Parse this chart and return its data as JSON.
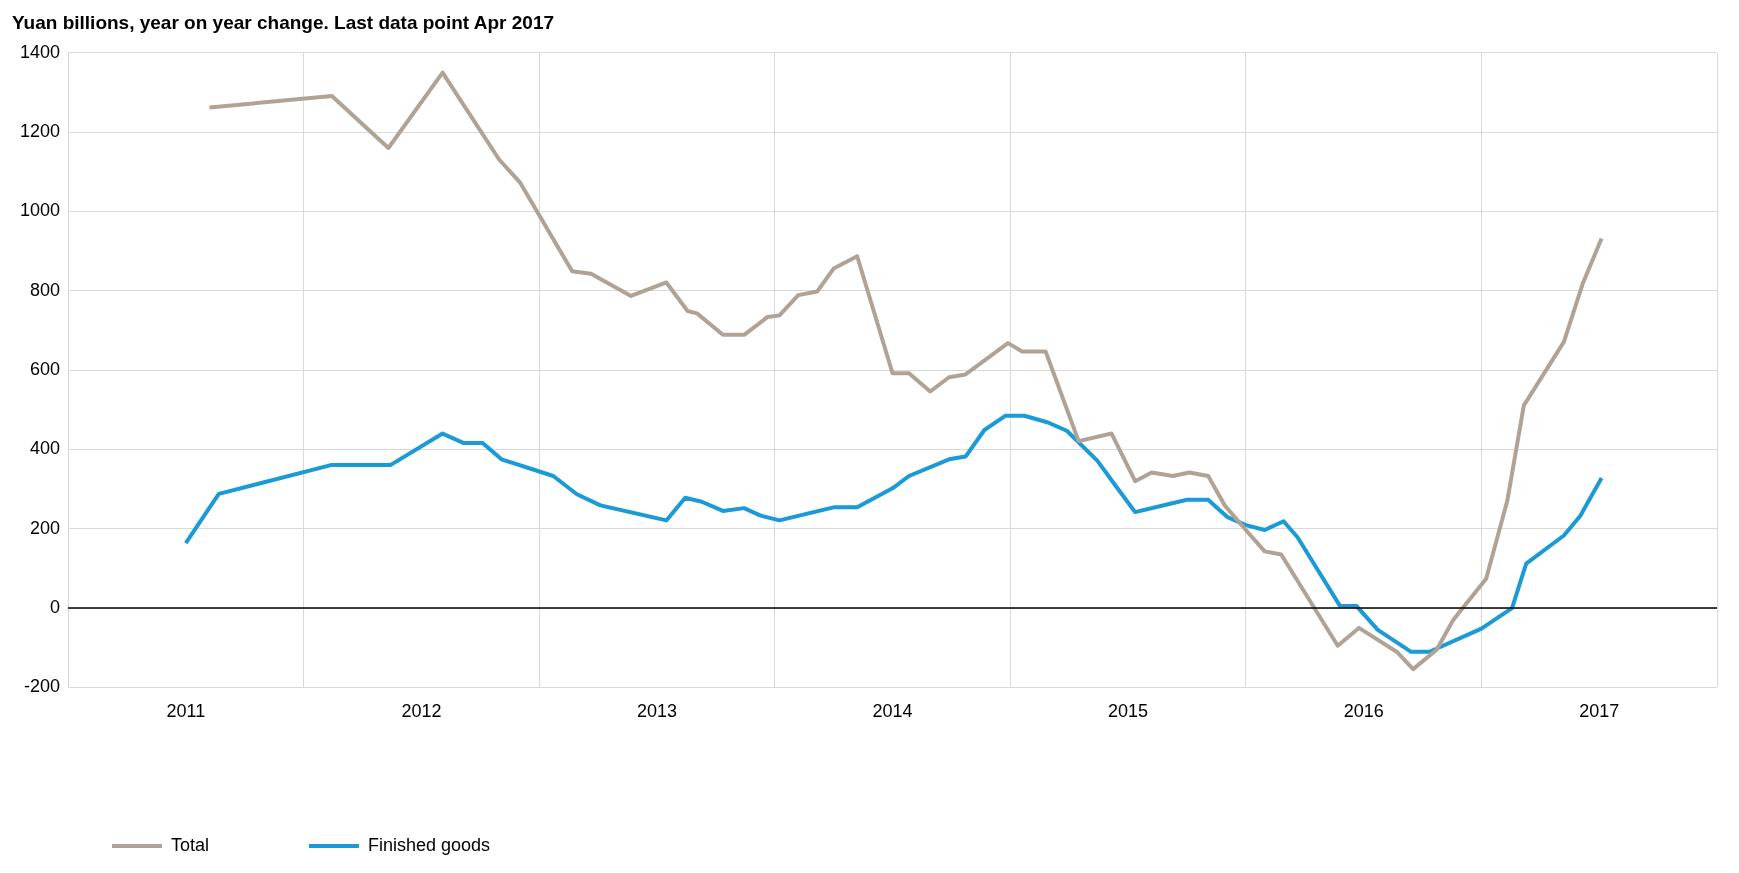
{
  "chart_data": {
    "type": "line",
    "title": "Yuan billions, year on year change. Last data point Apr 2017",
    "xlim": [
      2011,
      2018
    ],
    "xticks": [
      {
        "value": 2011,
        "label": null
      },
      {
        "value": 2011.5,
        "label": "2011"
      },
      {
        "value": 2012,
        "label": null
      },
      {
        "value": 2012.5,
        "label": "2012"
      },
      {
        "value": 2013,
        "label": null
      },
      {
        "value": 2013.5,
        "label": "2013"
      },
      {
        "value": 2014,
        "label": null
      },
      {
        "value": 2014.5,
        "label": "2014"
      },
      {
        "value": 2015,
        "label": null
      },
      {
        "value": 2015.5,
        "label": "2015"
      },
      {
        "value": 2016,
        "label": null
      },
      {
        "value": 2016.5,
        "label": "2016"
      },
      {
        "value": 2017,
        "label": null
      },
      {
        "value": 2017.5,
        "label": "2017"
      },
      {
        "value": 2018,
        "label": null
      }
    ],
    "ylim": [
      -200,
      1400
    ],
    "yticks": [
      -200,
      0,
      200,
      400,
      600,
      800,
      1000,
      1200,
      1400
    ],
    "grid": true,
    "legend": "bottom left",
    "marker": "none",
    "line_style": "solid",
    "ref_lines": [
      {
        "axis": "y",
        "value": 0,
        "color": "#000000"
      }
    ],
    "series": [
      {
        "name": "Total",
        "color": "#b0a396",
        "x": [
          2011.6,
          2012.12,
          2012.36,
          2012.59,
          2012.83,
          2012.92,
          2013.14,
          2013.22,
          2013.39,
          2013.54,
          2013.63,
          2013.67,
          2013.78,
          2013.87,
          2013.97,
          2014.02,
          2014.1,
          2014.18,
          2014.25,
          2014.35,
          2014.5,
          2014.57,
          2014.66,
          2014.74,
          2014.81,
          2014.99,
          2015.05,
          2015.15,
          2015.29,
          2015.43,
          2015.53,
          2015.6,
          2015.69,
          2015.76,
          2015.84,
          2015.91,
          2016.01,
          2016.08,
          2016.15,
          2016.39,
          2016.48,
          2016.64,
          2016.71,
          2016.81,
          2016.88,
          2017.02,
          2017.11,
          2017.18,
          2017.35,
          2017.43,
          2017.51
        ],
        "values": [
          1262,
          1291,
          1160,
          1350,
          1131,
          1072,
          849,
          843,
          787,
          821,
          749,
          743,
          689,
          689,
          734,
          738,
          789,
          798,
          856,
          887,
          592,
          592,
          546,
          582,
          589,
          668,
          647,
          647,
          421,
          440,
          320,
          342,
          333,
          342,
          333,
          259,
          190,
          143,
          135,
          -95,
          -50,
          -110,
          -154,
          -105,
          -30,
          74,
          271,
          511,
          671,
          818,
          932
        ]
      },
      {
        "name": "Finished goods",
        "color": "#1a9ad6",
        "x": [
          2011.5,
          2011.64,
          2012.12,
          2012.37,
          2012.59,
          2012.68,
          2012.76,
          2012.84,
          2013.06,
          2013.16,
          2013.26,
          2013.54,
          2013.62,
          2013.69,
          2013.78,
          2013.87,
          2013.94,
          2014.02,
          2014.25,
          2014.35,
          2014.5,
          2014.57,
          2014.74,
          2014.81,
          2014.89,
          2014.98,
          2015.06,
          2015.16,
          2015.24,
          2015.37,
          2015.44,
          2015.53,
          2015.75,
          2015.84,
          2015.92,
          2016.0,
          2016.08,
          2016.16,
          2016.22,
          2016.4,
          2016.47,
          2016.56,
          2016.7,
          2016.78,
          2017.0,
          2017.13,
          2017.19,
          2017.35,
          2017.42,
          2017.51
        ],
        "values": [
          164,
          288,
          361,
          361,
          440,
          416,
          416,
          375,
          333,
          287,
          259,
          221,
          278,
          268,
          245,
          252,
          233,
          221,
          254,
          254,
          302,
          333,
          375,
          382,
          449,
          485,
          485,
          468,
          447,
          371,
          314,
          242,
          273,
          273,
          230,
          209,
          197,
          219,
          178,
          5,
          5,
          -55,
          -110,
          -110,
          -52,
          0,
          112,
          183,
          233,
          328
        ]
      }
    ]
  }
}
